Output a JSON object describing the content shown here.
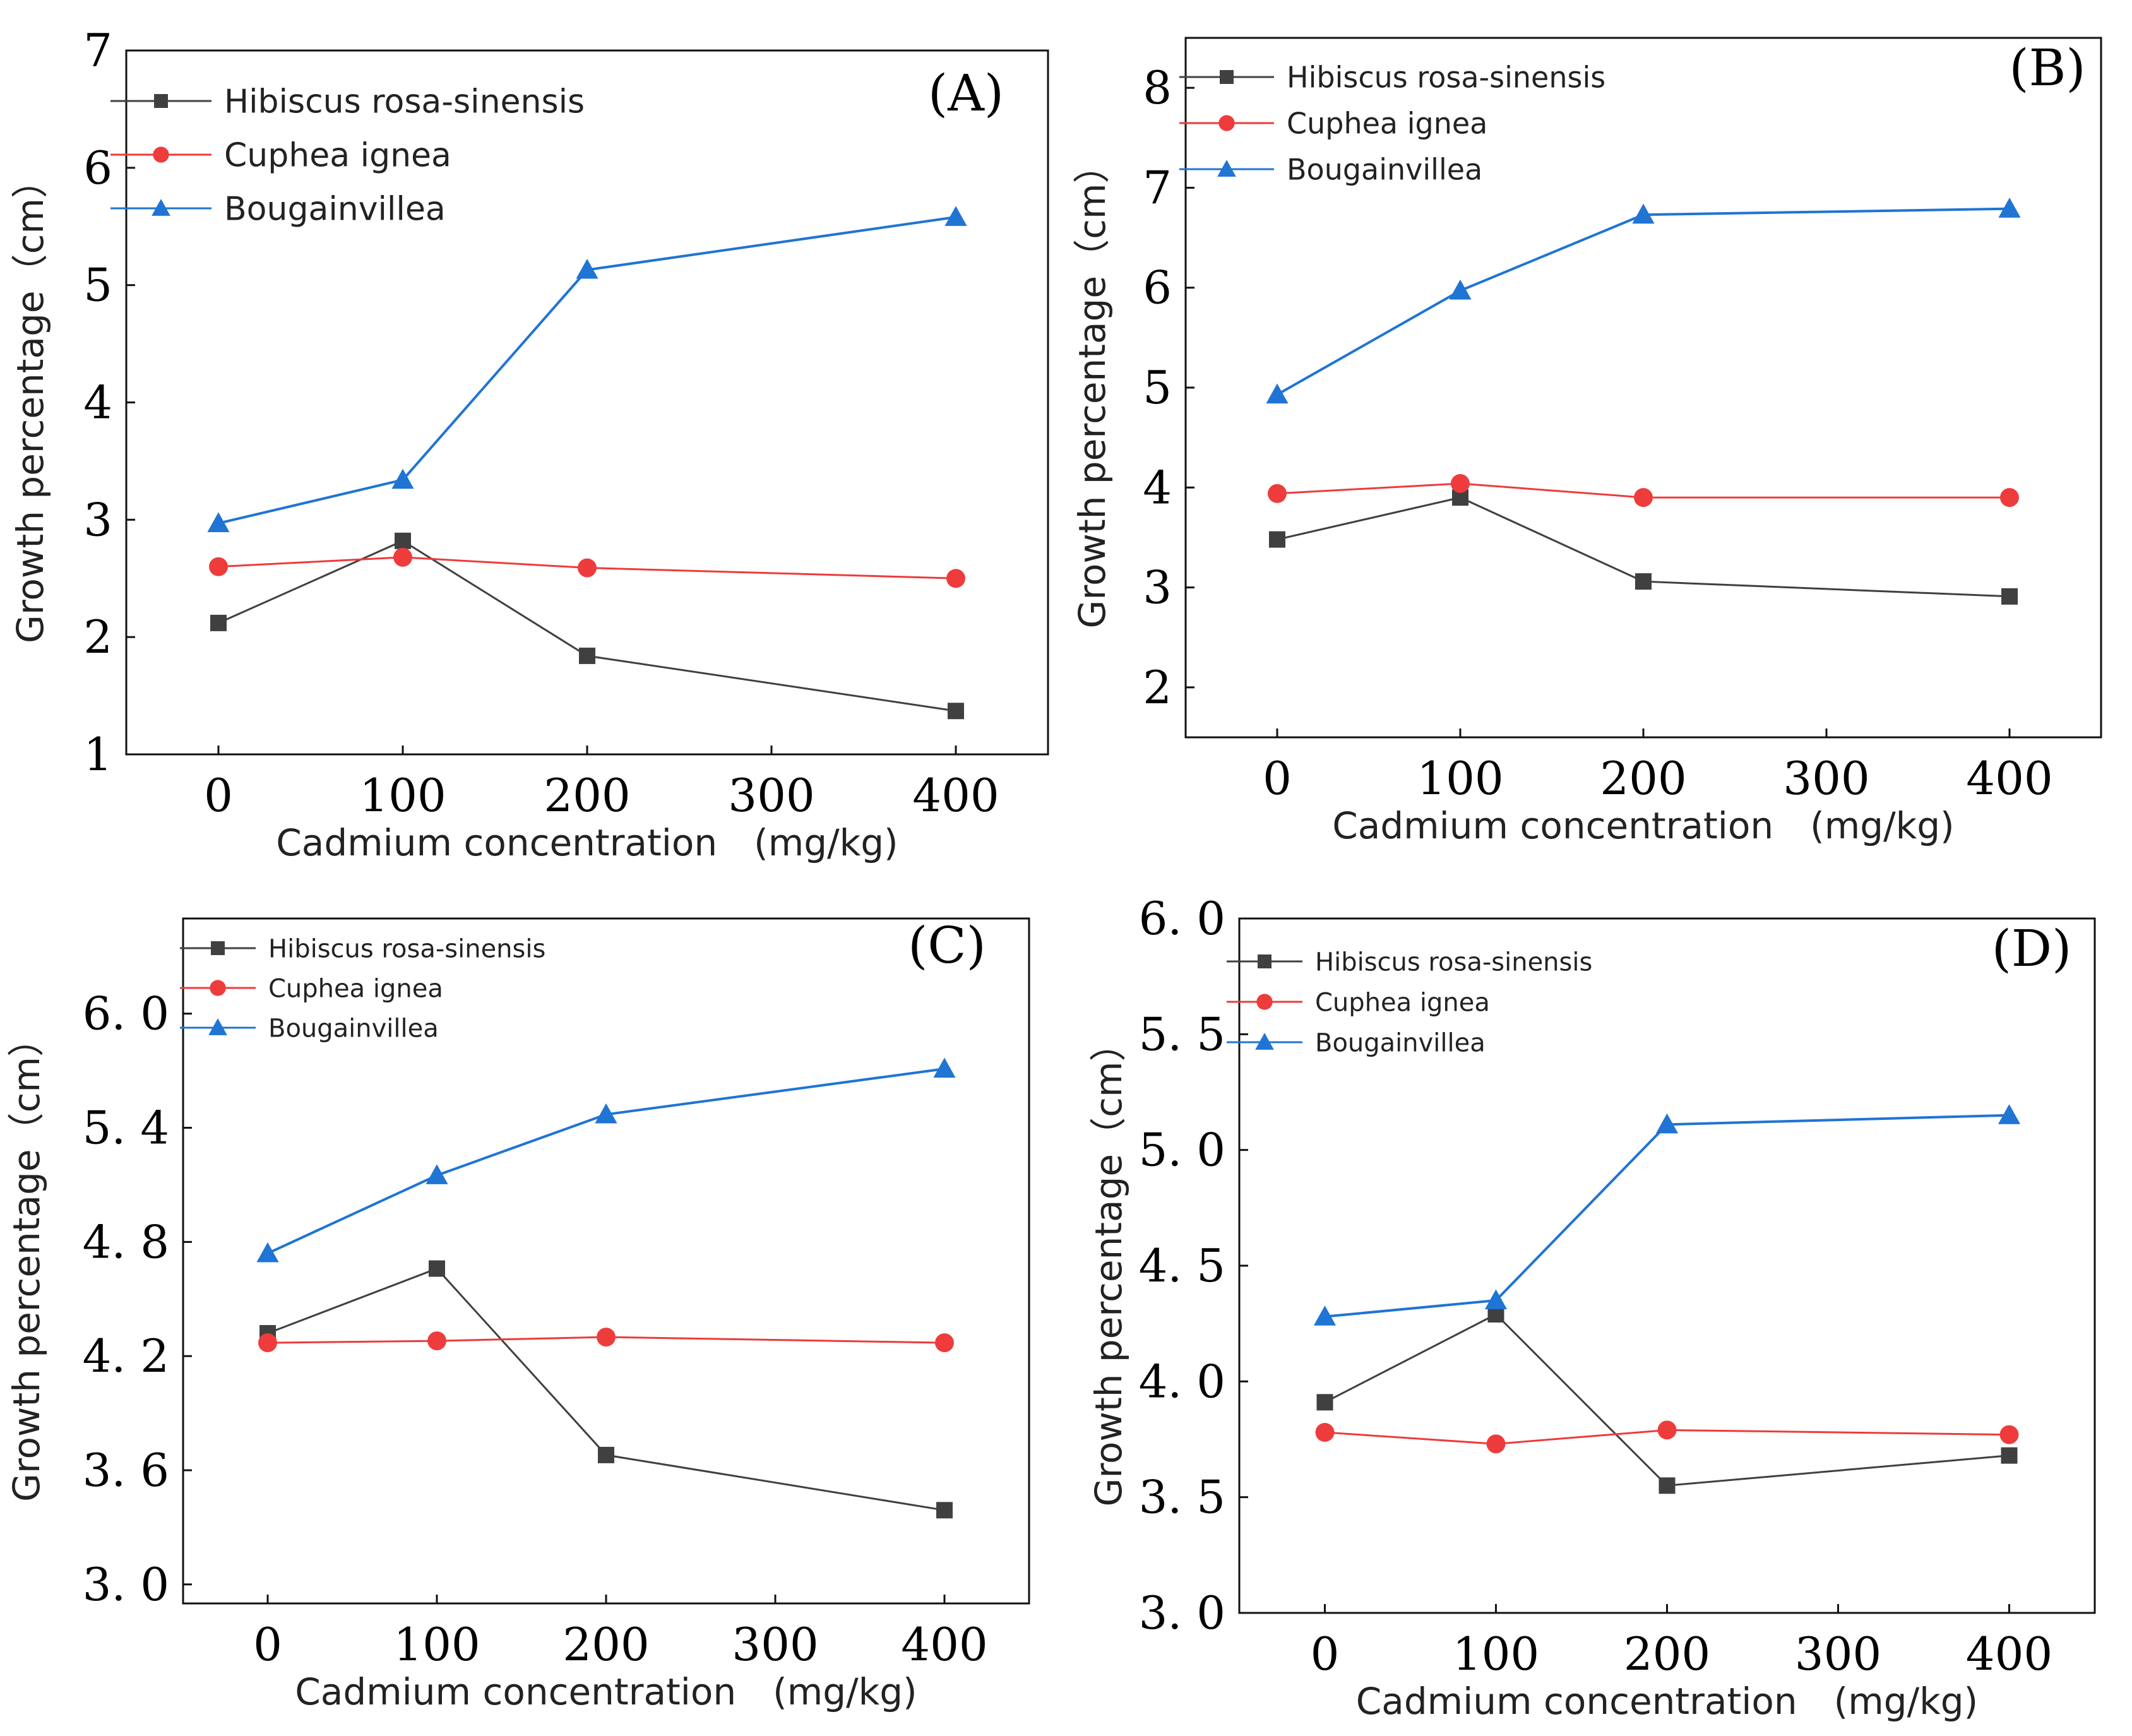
{
  "colors": {
    "hibiscus": "#404040",
    "cuphea": "#ee3b3b",
    "bougainvillea": "#1f74d4",
    "axis": "#111111"
  },
  "chart_data": [
    {
      "type": "line",
      "panel_label": "(A)",
      "xlabel": "Cadmium concentration　(mg/kg)",
      "ylabel": "Growth percentage（cm）",
      "x": [
        0,
        100,
        200,
        400
      ],
      "xticks": [
        0,
        100,
        200,
        300,
        400
      ],
      "xtick_labels": [
        "0",
        "100",
        "200",
        "300",
        "400"
      ],
      "xlim": [
        -50,
        450
      ],
      "yticks": [
        1,
        2,
        3,
        4,
        5,
        6,
        7
      ],
      "ytick_labels": [
        "1",
        "2",
        "3",
        "4",
        "5",
        "6",
        "7"
      ],
      "ylim": [
        1,
        7
      ],
      "legend_position": "top-left",
      "series": [
        {
          "name": "Hibiscus rosa-sinensis",
          "marker": "square",
          "color": "#404040",
          "values": [
            2.12,
            2.82,
            1.84,
            1.37
          ]
        },
        {
          "name": "Cuphea ignea",
          "marker": "circle",
          "color": "#ee3b3b",
          "values": [
            2.6,
            2.68,
            2.59,
            2.5
          ]
        },
        {
          "name": "Bougainvillea",
          "marker": "triangle",
          "color": "#1f74d4",
          "values": [
            2.97,
            3.34,
            5.13,
            5.58
          ]
        }
      ]
    },
    {
      "type": "line",
      "panel_label": "(B)",
      "xlabel": "Cadmium concentration　(mg/kg)",
      "ylabel": "Growth percentage（cm）",
      "x": [
        0,
        100,
        200,
        400
      ],
      "xticks": [
        0,
        100,
        200,
        300,
        400
      ],
      "xtick_labels": [
        "0",
        "100",
        "200",
        "300",
        "400"
      ],
      "xlim": [
        -50,
        450
      ],
      "yticks": [
        2,
        3,
        4,
        5,
        6,
        7,
        8
      ],
      "ytick_labels": [
        "2",
        "3",
        "4",
        "5",
        "6",
        "7",
        "8"
      ],
      "ylim": [
        1.5,
        8.5
      ],
      "legend_position": "top-left",
      "series": [
        {
          "name": "Hibiscus rosa-sinensis",
          "marker": "square",
          "color": "#404040",
          "values": [
            3.48,
            3.9,
            3.06,
            2.91
          ]
        },
        {
          "name": "Cuphea ignea",
          "marker": "circle",
          "color": "#ee3b3b",
          "values": [
            3.94,
            4.04,
            3.9,
            3.9
          ]
        },
        {
          "name": "Bougainvillea",
          "marker": "triangle",
          "color": "#1f74d4",
          "values": [
            4.93,
            5.97,
            6.73,
            6.79
          ]
        }
      ]
    },
    {
      "type": "line",
      "panel_label": "(C)",
      "xlabel": "Cadmium concentration　(mg/kg)",
      "ylabel": "Growth percentage（cm）",
      "x": [
        0,
        100,
        200,
        400
      ],
      "xticks": [
        0,
        100,
        200,
        300,
        400
      ],
      "xtick_labels": [
        "0",
        "100",
        "200",
        "300",
        "400"
      ],
      "xlim": [
        -50,
        450
      ],
      "yticks": [
        3.0,
        3.6,
        4.2,
        4.8,
        5.4,
        6.0
      ],
      "ytick_labels": [
        "3. 0",
        "3. 6",
        "4. 2",
        "4. 8",
        "5. 4",
        "6. 0"
      ],
      "ylim": [
        2.9,
        6.5
      ],
      "legend_position": "top-left",
      "series": [
        {
          "name": "Hibiscus rosa-sinensis",
          "marker": "square",
          "color": "#404040",
          "values": [
            4.32,
            4.66,
            3.68,
            3.39
          ]
        },
        {
          "name": "Cuphea ignea",
          "marker": "circle",
          "color": "#ee3b3b",
          "values": [
            4.27,
            4.28,
            4.3,
            4.27
          ]
        },
        {
          "name": "Bougainvillea",
          "marker": "triangle",
          "color": "#1f74d4",
          "values": [
            4.74,
            5.15,
            5.47,
            5.71
          ]
        }
      ]
    },
    {
      "type": "line",
      "panel_label": "(D)",
      "xlabel": "Cadmium concentration　(mg/kg)",
      "ylabel": "Growth percentage（cm）",
      "x": [
        0,
        100,
        200,
        400
      ],
      "xticks": [
        0,
        100,
        200,
        300,
        400
      ],
      "xtick_labels": [
        "0",
        "100",
        "200",
        "300",
        "400"
      ],
      "xlim": [
        -50,
        450
      ],
      "yticks": [
        3.0,
        3.5,
        4.0,
        4.5,
        5.0,
        5.5,
        6.0
      ],
      "ytick_labels": [
        "3. 0",
        "3. 5",
        "4. 0",
        "4. 5",
        "5. 0",
        "5. 5",
        "6. 0"
      ],
      "ylim": [
        3.0,
        6.0
      ],
      "legend_position": "top-left",
      "series": [
        {
          "name": "Hibiscus rosa-sinensis",
          "marker": "square",
          "color": "#404040",
          "values": [
            3.91,
            4.29,
            3.55,
            3.68
          ]
        },
        {
          "name": "Cuphea ignea",
          "marker": "circle",
          "color": "#ee3b3b",
          "values": [
            3.78,
            3.73,
            3.79,
            3.77
          ]
        },
        {
          "name": "Bougainvillea",
          "marker": "triangle",
          "color": "#1f74d4",
          "values": [
            4.28,
            4.35,
            5.11,
            5.15
          ]
        }
      ]
    }
  ]
}
